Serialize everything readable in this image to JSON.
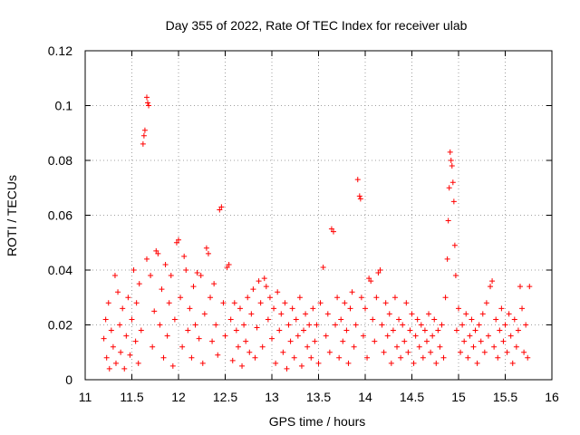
{
  "chart_data": {
    "type": "scatter",
    "title": "Day 355 of 2022, Rate Of TEC Index for receiver ulab",
    "xlabel": "GPS time / hours",
    "ylabel": "ROTI / TECUs",
    "xlim": [
      11,
      16
    ],
    "ylim": [
      0,
      0.12
    ],
    "xticks": [
      "11",
      "11.5",
      "12",
      "12.5",
      "13",
      "13.5",
      "14",
      "14.5",
      "15",
      "15.5",
      "16"
    ],
    "yticks": [
      "0",
      "0.02",
      "0.04",
      "0.06",
      "0.08",
      "0.1",
      "0.12"
    ],
    "grid": true,
    "marker": "+",
    "color": "#ff0000",
    "series": [
      {
        "points": [
          [
            11.2,
            0.015
          ],
          [
            11.22,
            0.022
          ],
          [
            11.23,
            0.008
          ],
          [
            11.25,
            0.028
          ],
          [
            11.26,
            0.004
          ],
          [
            11.28,
            0.018
          ],
          [
            11.3,
            0.012
          ],
          [
            11.32,
            0.038
          ],
          [
            11.33,
            0.006
          ],
          [
            11.35,
            0.032
          ],
          [
            11.37,
            0.02
          ],
          [
            11.38,
            0.01
          ],
          [
            11.4,
            0.026
          ],
          [
            11.42,
            0.004
          ],
          [
            11.44,
            0.016
          ],
          [
            11.46,
            0.03
          ],
          [
            11.48,
            0.009
          ],
          [
            11.5,
            0.022
          ],
          [
            11.52,
            0.04
          ],
          [
            11.54,
            0.014
          ],
          [
            11.55,
            0.028
          ],
          [
            11.57,
            0.006
          ],
          [
            11.58,
            0.035
          ],
          [
            11.6,
            0.018
          ],
          [
            11.62,
            0.086
          ],
          [
            11.63,
            0.089
          ],
          [
            11.64,
            0.091
          ],
          [
            11.66,
            0.103
          ],
          [
            11.67,
            0.101
          ],
          [
            11.68,
            0.1
          ],
          [
            11.66,
            0.044
          ],
          [
            11.7,
            0.038
          ],
          [
            11.72,
            0.012
          ],
          [
            11.74,
            0.025
          ],
          [
            11.76,
            0.047
          ],
          [
            11.78,
            0.046
          ],
          [
            11.8,
            0.02
          ],
          [
            11.82,
            0.033
          ],
          [
            11.84,
            0.008
          ],
          [
            11.86,
            0.042
          ],
          [
            11.88,
            0.016
          ],
          [
            11.9,
            0.028
          ],
          [
            11.92,
            0.038
          ],
          [
            11.94,
            0.005
          ],
          [
            11.96,
            0.022
          ],
          [
            11.98,
            0.05
          ],
          [
            12.0,
            0.051
          ],
          [
            12.02,
            0.03
          ],
          [
            12.04,
            0.012
          ],
          [
            12.06,
            0.045
          ],
          [
            12.08,
            0.04
          ],
          [
            12.1,
            0.018
          ],
          [
            12.12,
            0.026
          ],
          [
            12.14,
            0.008
          ],
          [
            12.16,
            0.034
          ],
          [
            12.18,
            0.02
          ],
          [
            12.2,
            0.039
          ],
          [
            12.22,
            0.015
          ],
          [
            12.24,
            0.038
          ],
          [
            12.26,
            0.006
          ],
          [
            12.28,
            0.024
          ],
          [
            12.3,
            0.048
          ],
          [
            12.32,
            0.046
          ],
          [
            12.34,
            0.03
          ],
          [
            12.36,
            0.014
          ],
          [
            12.38,
            0.035
          ],
          [
            12.4,
            0.02
          ],
          [
            12.42,
            0.009
          ],
          [
            12.44,
            0.062
          ],
          [
            12.46,
            0.063
          ],
          [
            12.48,
            0.028
          ],
          [
            12.5,
            0.016
          ],
          [
            12.52,
            0.041
          ],
          [
            12.54,
            0.042
          ],
          [
            12.56,
            0.022
          ],
          [
            12.58,
            0.007
          ],
          [
            12.6,
            0.028
          ],
          [
            12.62,
            0.018
          ],
          [
            12.64,
            0.012
          ],
          [
            12.66,
            0.026
          ],
          [
            12.68,
            0.005
          ],
          [
            12.7,
            0.02
          ],
          [
            12.72,
            0.014
          ],
          [
            12.74,
            0.03
          ],
          [
            12.76,
            0.01
          ],
          [
            12.78,
            0.024
          ],
          [
            12.8,
            0.033
          ],
          [
            12.82,
            0.008
          ],
          [
            12.84,
            0.019
          ],
          [
            12.86,
            0.036
          ],
          [
            12.88,
            0.028
          ],
          [
            12.9,
            0.012
          ],
          [
            12.92,
            0.037
          ],
          [
            12.94,
            0.034
          ],
          [
            12.96,
            0.022
          ],
          [
            12.98,
            0.03
          ],
          [
            13.0,
            0.015
          ],
          [
            13.02,
            0.026
          ],
          [
            13.04,
            0.006
          ],
          [
            13.06,
            0.032
          ],
          [
            13.08,
            0.018
          ],
          [
            13.1,
            0.024
          ],
          [
            13.12,
            0.01
          ],
          [
            13.14,
            0.028
          ],
          [
            13.16,
            0.004
          ],
          [
            13.18,
            0.02
          ],
          [
            13.2,
            0.014
          ],
          [
            13.22,
            0.026
          ],
          [
            13.24,
            0.008
          ],
          [
            13.26,
            0.022
          ],
          [
            13.28,
            0.016
          ],
          [
            13.3,
            0.03
          ],
          [
            13.32,
            0.005
          ],
          [
            13.34,
            0.018
          ],
          [
            13.36,
            0.024
          ],
          [
            13.38,
            0.012
          ],
          [
            13.4,
            0.02
          ],
          [
            13.42,
            0.008
          ],
          [
            13.44,
            0.026
          ],
          [
            13.46,
            0.014
          ],
          [
            13.48,
            0.02
          ],
          [
            13.5,
            0.006
          ],
          [
            13.52,
            0.028
          ],
          [
            13.55,
            0.041
          ],
          [
            13.58,
            0.016
          ],
          [
            13.6,
            0.024
          ],
          [
            13.62,
            0.01
          ],
          [
            13.64,
            0.055
          ],
          [
            13.66,
            0.054
          ],
          [
            13.68,
            0.02
          ],
          [
            13.7,
            0.03
          ],
          [
            13.72,
            0.008
          ],
          [
            13.74,
            0.022
          ],
          [
            13.76,
            0.014
          ],
          [
            13.78,
            0.028
          ],
          [
            13.8,
            0.018
          ],
          [
            13.82,
            0.006
          ],
          [
            13.84,
            0.026
          ],
          [
            13.86,
            0.032
          ],
          [
            13.88,
            0.012
          ],
          [
            13.9,
            0.02
          ],
          [
            13.92,
            0.073
          ],
          [
            13.94,
            0.067
          ],
          [
            13.95,
            0.066
          ],
          [
            13.96,
            0.03
          ],
          [
            13.98,
            0.016
          ],
          [
            14.0,
            0.026
          ],
          [
            14.02,
            0.008
          ],
          [
            14.04,
            0.037
          ],
          [
            14.06,
            0.036
          ],
          [
            14.08,
            0.022
          ],
          [
            14.1,
            0.014
          ],
          [
            14.12,
            0.03
          ],
          [
            14.14,
            0.039
          ],
          [
            14.16,
            0.04
          ],
          [
            14.18,
            0.02
          ],
          [
            14.2,
            0.01
          ],
          [
            14.22,
            0.028
          ],
          [
            14.24,
            0.016
          ],
          [
            14.26,
            0.024
          ],
          [
            14.28,
            0.006
          ],
          [
            14.3,
            0.018
          ],
          [
            14.32,
            0.03
          ],
          [
            14.34,
            0.012
          ],
          [
            14.36,
            0.022
          ],
          [
            14.38,
            0.008
          ],
          [
            14.4,
            0.02
          ],
          [
            14.42,
            0.014
          ],
          [
            14.44,
            0.028
          ],
          [
            14.46,
            0.01
          ],
          [
            14.48,
            0.018
          ],
          [
            14.5,
            0.024
          ],
          [
            14.52,
            0.006
          ],
          [
            14.54,
            0.016
          ],
          [
            14.56,
            0.022
          ],
          [
            14.58,
            0.012
          ],
          [
            14.6,
            0.02
          ],
          [
            14.62,
            0.008
          ],
          [
            14.64,
            0.018
          ],
          [
            14.66,
            0.014
          ],
          [
            14.68,
            0.024
          ],
          [
            14.7,
            0.01
          ],
          [
            14.72,
            0.016
          ],
          [
            14.74,
            0.022
          ],
          [
            14.76,
            0.006
          ],
          [
            14.78,
            0.018
          ],
          [
            14.8,
            0.012
          ],
          [
            14.82,
            0.02
          ],
          [
            14.84,
            0.008
          ],
          [
            14.86,
            0.03
          ],
          [
            14.88,
            0.044
          ],
          [
            14.89,
            0.058
          ],
          [
            14.9,
            0.07
          ],
          [
            14.91,
            0.083
          ],
          [
            14.92,
            0.08
          ],
          [
            14.93,
            0.078
          ],
          [
            14.94,
            0.072
          ],
          [
            14.95,
            0.065
          ],
          [
            14.96,
            0.049
          ],
          [
            14.97,
            0.038
          ],
          [
            14.98,
            0.018
          ],
          [
            15.0,
            0.026
          ],
          [
            15.02,
            0.01
          ],
          [
            15.04,
            0.02
          ],
          [
            15.06,
            0.014
          ],
          [
            15.08,
            0.024
          ],
          [
            15.1,
            0.008
          ],
          [
            15.12,
            0.016
          ],
          [
            15.14,
            0.022
          ],
          [
            15.16,
            0.012
          ],
          [
            15.18,
            0.018
          ],
          [
            15.2,
            0.006
          ],
          [
            15.22,
            0.02
          ],
          [
            15.24,
            0.014
          ],
          [
            15.26,
            0.024
          ],
          [
            15.28,
            0.01
          ],
          [
            15.3,
            0.028
          ],
          [
            15.32,
            0.016
          ],
          [
            15.34,
            0.034
          ],
          [
            15.36,
            0.036
          ],
          [
            15.38,
            0.012
          ],
          [
            15.4,
            0.022
          ],
          [
            15.42,
            0.008
          ],
          [
            15.44,
            0.018
          ],
          [
            15.46,
            0.026
          ],
          [
            15.48,
            0.014
          ],
          [
            15.5,
            0.02
          ],
          [
            15.52,
            0.01
          ],
          [
            15.54,
            0.024
          ],
          [
            15.56,
            0.016
          ],
          [
            15.58,
            0.006
          ],
          [
            15.6,
            0.022
          ],
          [
            15.62,
            0.012
          ],
          [
            15.64,
            0.018
          ],
          [
            15.66,
            0.034
          ],
          [
            15.68,
            0.026
          ],
          [
            15.7,
            0.01
          ],
          [
            15.72,
            0.02
          ],
          [
            15.74,
            0.008
          ],
          [
            15.76,
            0.034
          ]
        ]
      }
    ]
  }
}
